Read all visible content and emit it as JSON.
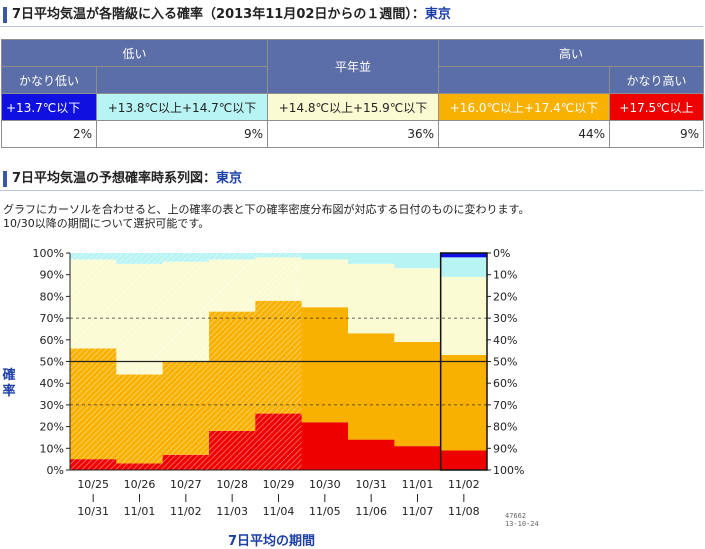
{
  "header1": {
    "title": "7日平均気温が各階級に入る確率（2013年11月02日からの１週間）：",
    "location": "東京"
  },
  "table": {
    "groups": [
      "低い",
      "平年並",
      "高い"
    ],
    "subgroups": [
      "かなり低い",
      "かなり高い"
    ],
    "ranges": [
      "+13.7℃以下",
      "+13.8℃以上+14.7℃以下",
      "+14.8℃以上+15.9℃以下",
      "+16.0℃以上+17.4℃以下",
      "+17.5℃以上"
    ],
    "probs": [
      "2%",
      "9%",
      "36%",
      "44%",
      "9%"
    ]
  },
  "header2": {
    "title": "7日平均気温の予想確率時系列図：",
    "location": "東京"
  },
  "description": [
    "グラフにカーソルを合わせると、上の確率の表と下の確率密度分布図が対応する日付のものに変わります。",
    "10/30以降の期間について選択可能です。"
  ],
  "chart_data": {
    "type": "area",
    "periods": [
      {
        "start": "10/25",
        "end": "10/31"
      },
      {
        "start": "10/26",
        "end": "11/01"
      },
      {
        "start": "10/27",
        "end": "11/02"
      },
      {
        "start": "10/28",
        "end": "11/03"
      },
      {
        "start": "10/29",
        "end": "11/04"
      },
      {
        "start": "10/30",
        "end": "11/05"
      },
      {
        "start": "10/31",
        "end": "11/06"
      },
      {
        "start": "11/01",
        "end": "11/07"
      },
      {
        "start": "11/02",
        "end": "11/08"
      }
    ],
    "series": [
      {
        "name": "+17.5℃以上",
        "color": "#ee0000",
        "values": [
          5,
          3,
          7,
          18,
          26,
          22,
          14,
          11,
          9
        ]
      },
      {
        "name": "+16.0℃以上+17.4℃以下",
        "color": "#f9b100",
        "values": [
          51,
          41,
          43,
          55,
          52,
          53,
          49,
          48,
          44
        ]
      },
      {
        "name": "+14.8℃以上+15.9℃以下",
        "color": "#fbfbd3",
        "values": [
          41,
          51,
          46,
          24,
          20,
          22,
          32,
          34,
          36
        ]
      },
      {
        "name": "+13.8℃以上+14.7℃以下",
        "color": "#b8f4f4",
        "values": [
          3,
          5,
          4,
          3,
          2,
          3,
          5,
          7,
          9
        ]
      },
      {
        "name": "+13.7℃以下",
        "color": "#1010e0",
        "values": [
          0,
          0,
          0,
          0,
          0,
          0,
          0,
          0,
          2
        ]
      }
    ],
    "hatched_periods": 5,
    "selected_period": 8,
    "left_ticks": [
      "100%",
      "90%",
      "80%",
      "70%",
      "60%",
      "50%",
      "40%",
      "30%",
      "20%",
      "10%",
      "0%"
    ],
    "right_ticks": [
      "0%",
      "10%",
      "20%",
      "30%",
      "40%",
      "50%",
      "60%",
      "70%",
      "80%",
      "90%",
      "100%"
    ],
    "ylabel": "確率",
    "xlabel": "7日平均の期間",
    "stamp": [
      "47662",
      "13-10-24"
    ]
  }
}
